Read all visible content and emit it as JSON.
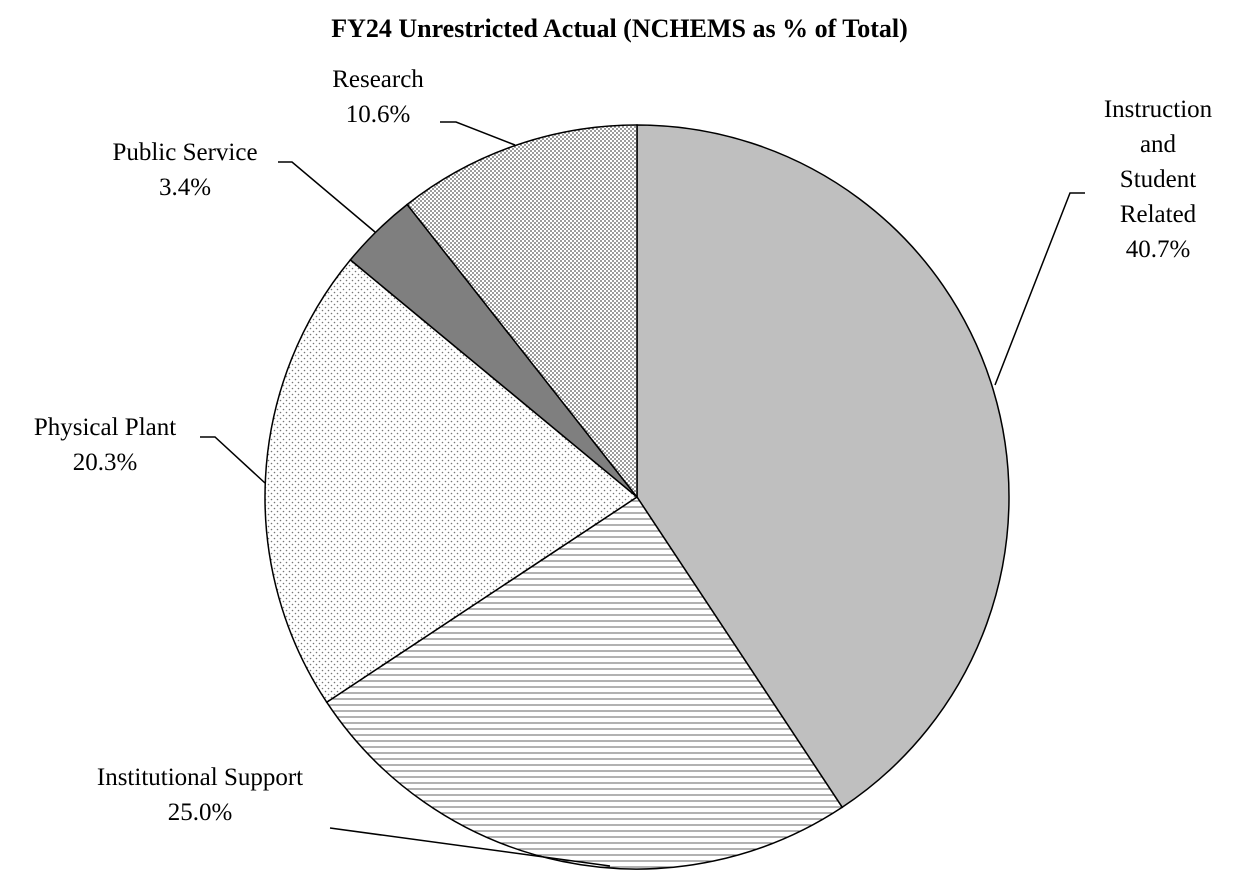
{
  "chart_data": {
    "type": "pie",
    "title": "FY24 Unrestricted Actual (NCHEMS as % of Total)",
    "categories": [
      "Instruction and Student Related",
      "Institutional Support",
      "Physical Plant",
      "Public Service",
      "Research"
    ],
    "values": [
      40.7,
      25.0,
      20.3,
      3.4,
      10.6
    ],
    "value_labels": [
      "40.7%",
      "25.0%",
      "20.3%",
      "3.4%",
      "10.6%"
    ],
    "colors": [
      "#bfbfbf",
      "#ffffff",
      "#ffffff",
      "#7f7f7f",
      "#ffffff"
    ],
    "patterns": [
      "solid",
      "horizontal-lines",
      "dots",
      "solid",
      "dense-dots"
    ],
    "start_angle": 90,
    "direction": "clockwise"
  }
}
